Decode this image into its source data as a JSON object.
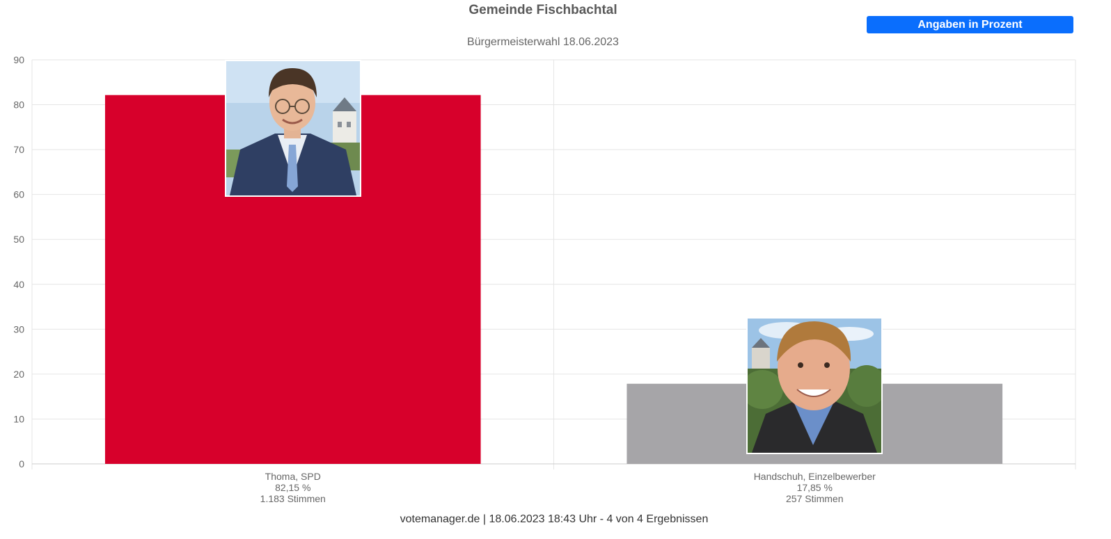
{
  "header": {
    "title": "Gemeinde Fischbachtal",
    "subtitle": "Bürgermeisterwahl 18.06.2023",
    "toggle_label": "Angaben in Prozent"
  },
  "footer": {
    "credit": "votemanager.de | 18.06.2023 18:43 Uhr - 4 von 4 Ergebnissen"
  },
  "colors": {
    "accent": "#0a6efd",
    "thoma": "#d7002b",
    "handschuh": "#a6a5a8",
    "grid": "#e5e5e5"
  },
  "chart_data": {
    "type": "bar",
    "title": "Gemeinde Fischbachtal",
    "subtitle": "Bürgermeisterwahl 18.06.2023",
    "xlabel": "",
    "ylabel": "",
    "ylim": [
      0,
      90
    ],
    "yticks": [
      0,
      10,
      20,
      30,
      40,
      50,
      60,
      70,
      80,
      90
    ],
    "grid": true,
    "categories": [
      {
        "name": "Thoma, SPD",
        "percent_label": "82,15 %",
        "votes_label": "1.183 Stimmen",
        "value": 82.15,
        "color": "#d7002b",
        "photo": "candidate-photo-thoma"
      },
      {
        "name": "Handschuh, Einzelbewerber",
        "percent_label": "17,85 %",
        "votes_label": "257 Stimmen",
        "value": 17.85,
        "color": "#a6a5a8",
        "photo": "candidate-photo-handschuh"
      }
    ]
  }
}
